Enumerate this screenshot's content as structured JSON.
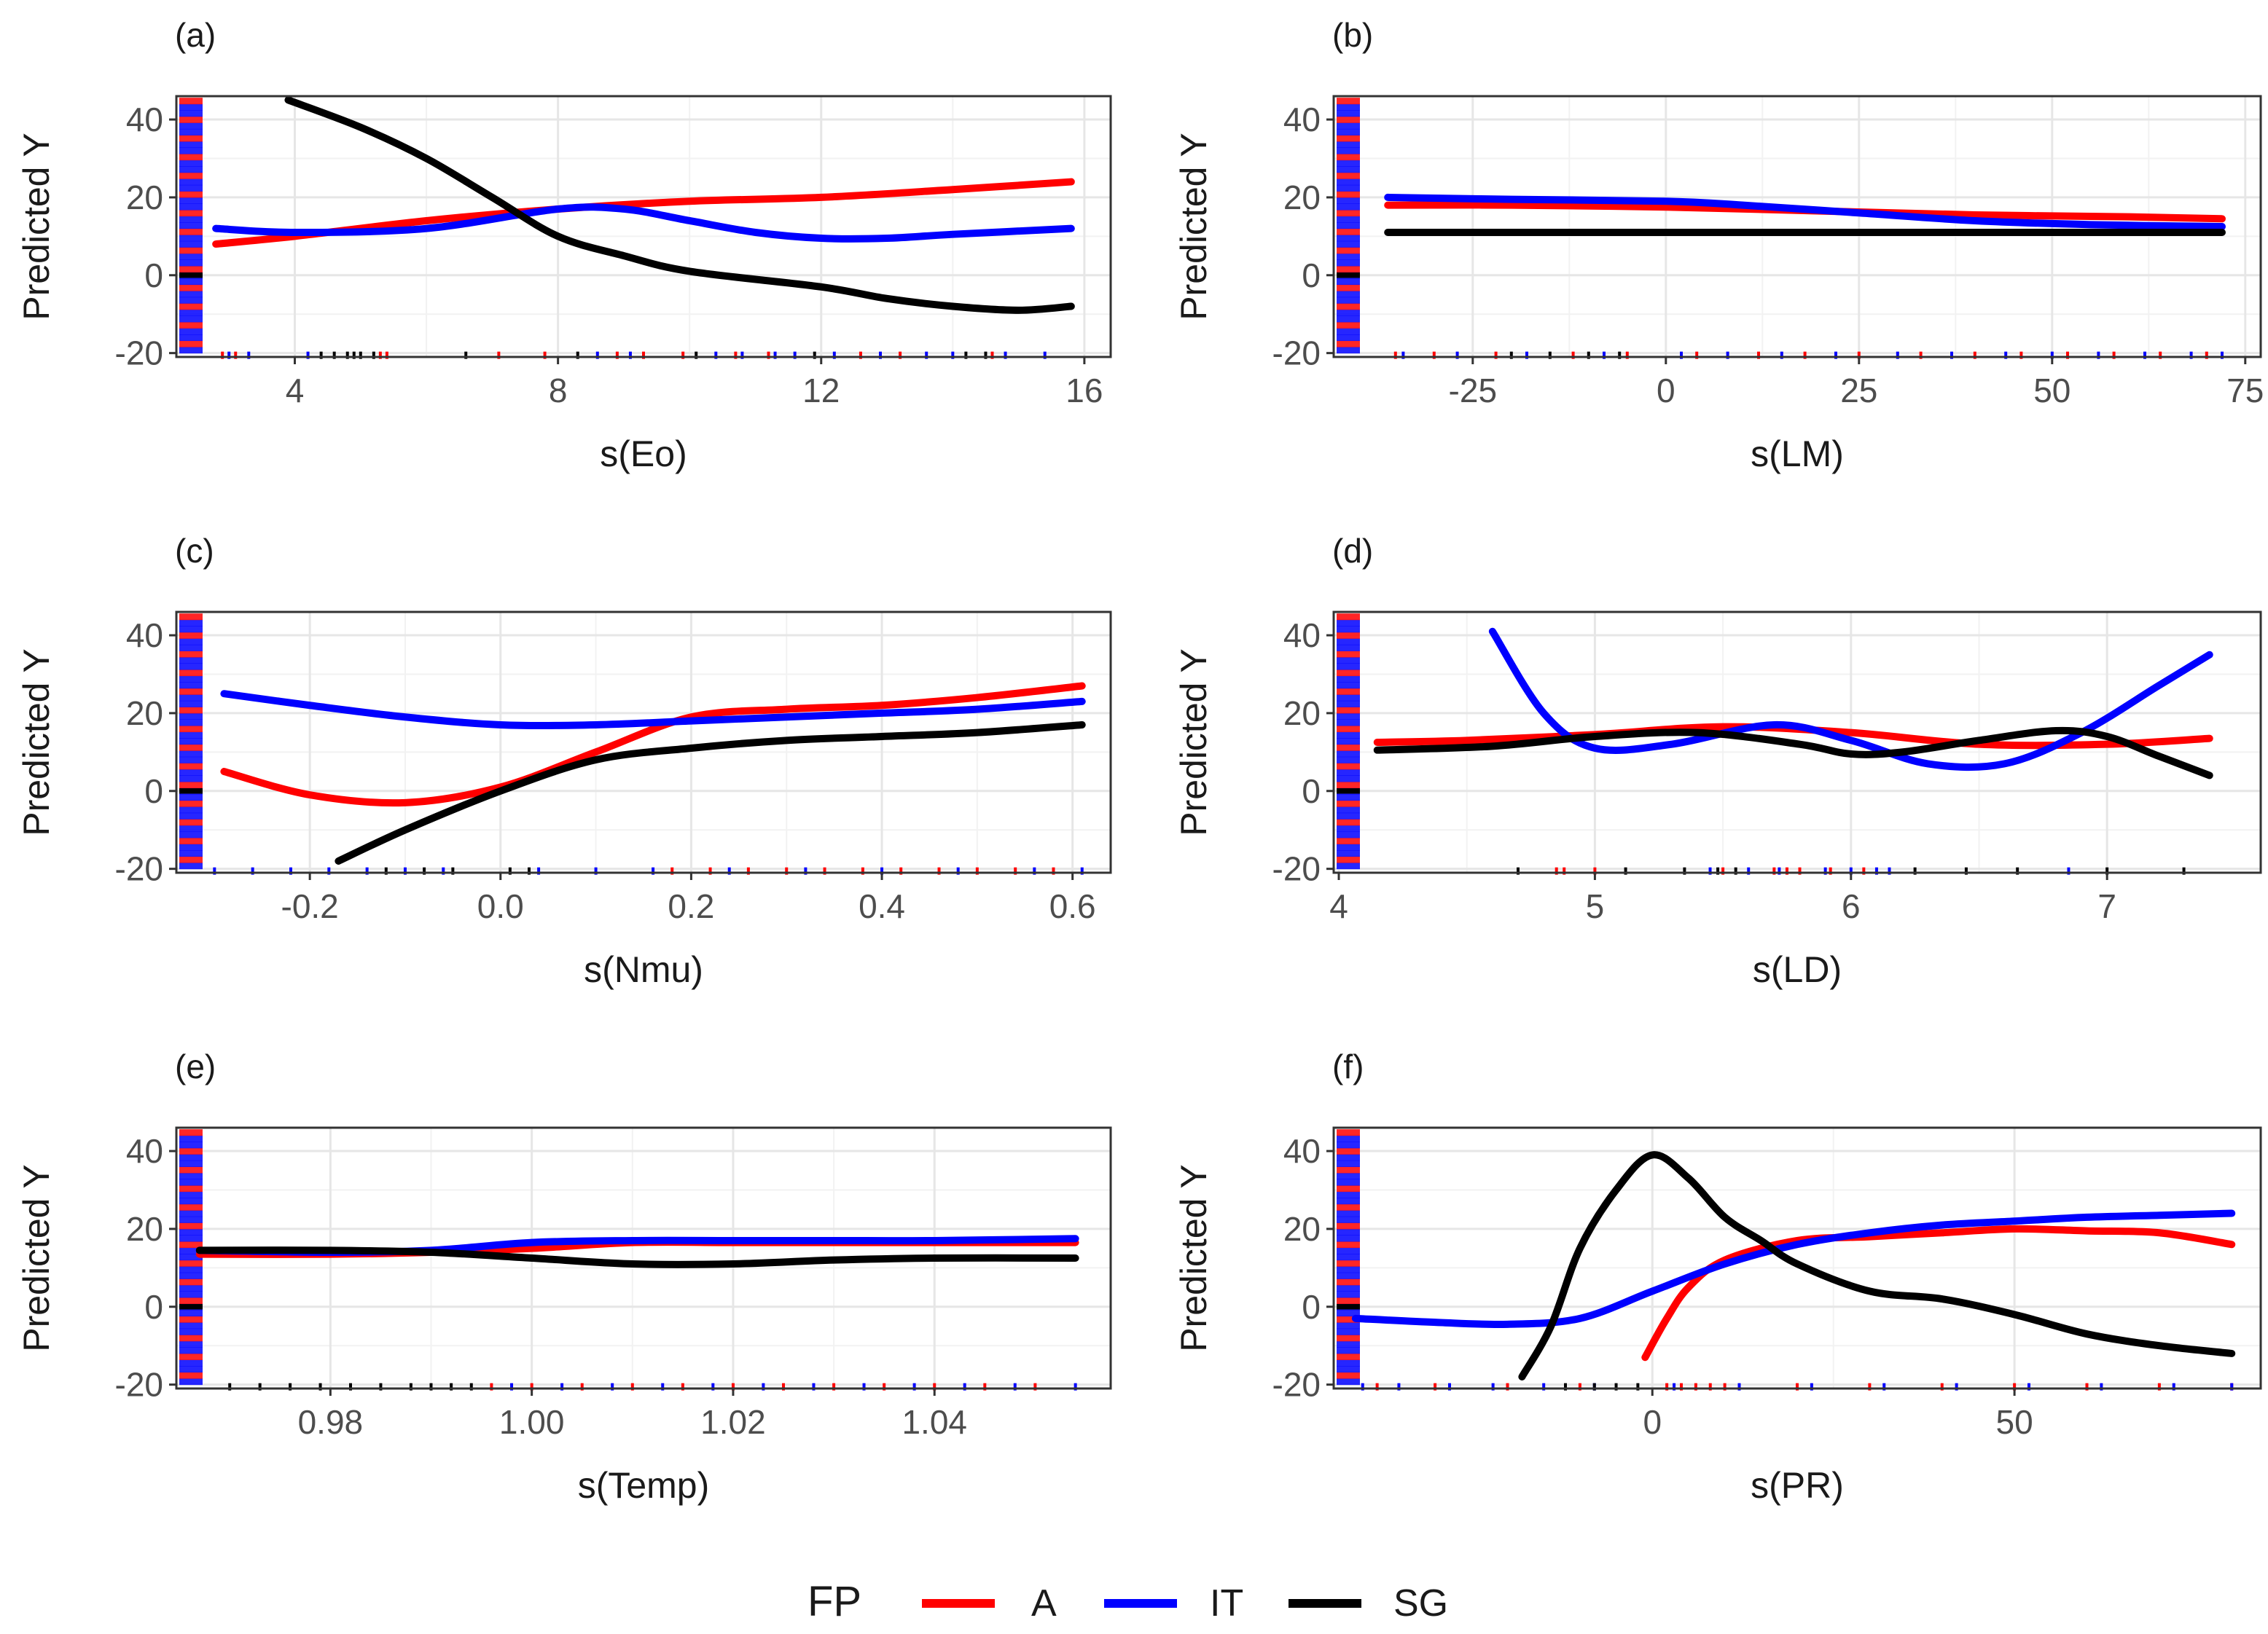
{
  "chart_data": [
    {
      "panel": "(a)",
      "type": "line",
      "xlabel": "s(Eo)",
      "ylabel": "Predicted Y",
      "xlim": [
        2.2,
        16.4
      ],
      "ylim": [
        -21,
        46
      ],
      "xticks": [
        4,
        8,
        12,
        16
      ],
      "xtick_labels": [
        "4",
        "8",
        "12",
        "16"
      ],
      "yticks": [
        -20,
        0,
        20,
        40
      ],
      "ytick_labels": [
        "-20",
        "0",
        "20",
        "40"
      ],
      "series": [
        {
          "name": "A",
          "x": [
            2.8,
            4,
            6,
            8,
            10,
            12,
            14,
            15.8
          ],
          "y": [
            8,
            10,
            14,
            17,
            19,
            20,
            22,
            24
          ]
        },
        {
          "name": "IT",
          "x": [
            2.8,
            4,
            6,
            8,
            9,
            10,
            11,
            12,
            13,
            14,
            15.8
          ],
          "y": [
            12,
            11,
            12,
            17,
            17,
            14,
            11,
            9.5,
            9.5,
            10.5,
            12
          ]
        },
        {
          "name": "SG",
          "x": [
            3.9,
            5,
            6,
            7,
            8,
            9,
            10,
            12,
            13,
            14,
            15,
            15.8
          ],
          "y": [
            45,
            38,
            30,
            20,
            10,
            5,
            1,
            -3,
            -6,
            -8,
            -9,
            -8
          ]
        }
      ],
      "rug_x": [
        {
          "series": "A",
          "x": [
            2.9,
            3.1,
            5.3,
            5.4,
            7.1,
            7.8,
            8.9,
            9.3,
            9.9,
            10.7,
            11.2,
            12.6,
            13.2,
            14.6
          ]
        },
        {
          "series": "IT",
          "x": [
            3.0,
            3.3,
            4.2,
            8.6,
            9.1,
            10.4,
            10.8,
            11.3,
            11.6,
            12.2,
            12.9,
            13.6,
            14.0,
            14.8,
            15.4
          ]
        },
        {
          "series": "SG",
          "x": [
            4.4,
            4.6,
            4.8,
            4.9,
            5.0,
            5.2,
            6.6,
            8.3,
            10.1,
            11.9,
            14.2,
            14.5
          ]
        }
      ]
    },
    {
      "panel": "(b)",
      "type": "line",
      "xlabel": "s(LM)",
      "ylabel": "Predicted Y",
      "xlim": [
        -43,
        77
      ],
      "ylim": [
        -21,
        46
      ],
      "xticks": [
        -25,
        0,
        25,
        50,
        75
      ],
      "xtick_labels": [
        "-25",
        "0",
        "25",
        "50",
        "75"
      ],
      "yticks": [
        -20,
        0,
        20,
        40
      ],
      "ytick_labels": [
        "-20",
        "0",
        "20",
        "40"
      ],
      "series": [
        {
          "name": "A",
          "x": [
            -36,
            -20,
            0,
            20,
            40,
            60,
            72
          ],
          "y": [
            18,
            18,
            17.5,
            16.5,
            15.5,
            15,
            14.5
          ]
        },
        {
          "name": "IT",
          "x": [
            -36,
            -20,
            0,
            10,
            25,
            40,
            55,
            72
          ],
          "y": [
            20,
            19.5,
            19,
            18,
            16,
            14,
            13,
            12.5
          ]
        },
        {
          "name": "SG",
          "x": [
            -36,
            72
          ],
          "y": [
            11,
            11
          ]
        }
      ],
      "rug_x": [
        {
          "series": "A",
          "x": [
            -35,
            -30,
            -22,
            -12,
            -5,
            4,
            12,
            18,
            25,
            33,
            40,
            46,
            52,
            58,
            64,
            70
          ]
        },
        {
          "series": "IT",
          "x": [
            -34,
            -27,
            -18,
            -8,
            2,
            8,
            15,
            22,
            30,
            37,
            44,
            50,
            56,
            62,
            68,
            72
          ]
        },
        {
          "series": "SG",
          "x": [
            -20,
            -15,
            -10,
            -6
          ]
        }
      ]
    },
    {
      "panel": "(c)",
      "type": "line",
      "xlabel": "s(Nmu)",
      "ylabel": "Predicted Y",
      "xlim": [
        -0.34,
        0.64
      ],
      "ylim": [
        -21,
        46
      ],
      "xticks": [
        -0.2,
        0.0,
        0.2,
        0.4,
        0.6
      ],
      "xtick_labels": [
        "-0.2",
        "0.0",
        "0.2",
        "0.4",
        "0.6"
      ],
      "yticks": [
        -20,
        0,
        20,
        40
      ],
      "ytick_labels": [
        "-20",
        "0",
        "20",
        "40"
      ],
      "series": [
        {
          "name": "A",
          "x": [
            -0.29,
            -0.2,
            -0.1,
            0.0,
            0.1,
            0.2,
            0.3,
            0.4,
            0.5,
            0.61
          ],
          "y": [
            5,
            -1,
            -3,
            1,
            10,
            19,
            21,
            22,
            24,
            27
          ]
        },
        {
          "name": "IT",
          "x": [
            -0.29,
            -0.2,
            -0.1,
            0.0,
            0.1,
            0.2,
            0.3,
            0.4,
            0.5,
            0.61
          ],
          "y": [
            25,
            22,
            19,
            17,
            17,
            18,
            19,
            20,
            21,
            23
          ]
        },
        {
          "name": "SG",
          "x": [
            -0.17,
            -0.1,
            0.0,
            0.1,
            0.2,
            0.3,
            0.4,
            0.5,
            0.61
          ],
          "y": [
            -18,
            -10,
            0,
            8,
            11,
            13,
            14,
            15,
            17
          ]
        }
      ],
      "rug_x": [
        {
          "series": "A",
          "x": [
            0.18,
            0.22,
            0.26,
            0.3,
            0.34,
            0.38,
            0.42,
            0.46,
            0.5,
            0.54,
            0.58
          ]
        },
        {
          "series": "IT",
          "x": [
            -0.3,
            -0.26,
            -0.22,
            -0.18,
            -0.14,
            -0.1,
            -0.06,
            0.04,
            0.1,
            0.16,
            0.24,
            0.32,
            0.4,
            0.48,
            0.56,
            0.61
          ]
        },
        {
          "series": "SG",
          "x": [
            -0.12,
            -0.08,
            -0.05,
            0.01,
            0.03
          ]
        }
      ]
    },
    {
      "panel": "(d)",
      "type": "line",
      "xlabel": "s(LD)",
      "ylabel": "Predicted Y",
      "xlim": [
        3.98,
        7.6
      ],
      "ylim": [
        -21,
        46
      ],
      "xticks": [
        4,
        5,
        6,
        7
      ],
      "xtick_labels": [
        "4",
        "5",
        "6",
        "7"
      ],
      "yticks": [
        -20,
        0,
        20,
        40
      ],
      "ytick_labels": [
        "-20",
        "0",
        "20",
        "40"
      ],
      "series": [
        {
          "name": "A",
          "x": [
            4.15,
            4.5,
            5.0,
            5.5,
            6.0,
            6.5,
            7.0,
            7.4
          ],
          "y": [
            12.5,
            13,
            14.5,
            16.5,
            15,
            12,
            12,
            13.5
          ]
        },
        {
          "name": "IT",
          "x": [
            4.6,
            4.8,
            5.0,
            5.3,
            5.7,
            6.0,
            6.3,
            6.6,
            6.9,
            7.2,
            7.4
          ],
          "y": [
            41,
            20,
            11,
            12,
            17,
            13,
            7,
            7,
            15,
            27,
            35
          ]
        },
        {
          "name": "SG",
          "x": [
            4.15,
            4.6,
            5.0,
            5.4,
            5.8,
            6.0,
            6.2,
            6.5,
            6.8,
            7.0,
            7.2,
            7.4
          ],
          "y": [
            10.5,
            11.5,
            14,
            15,
            12,
            9.5,
            10,
            13,
            15.5,
            14,
            9,
            4
          ]
        }
      ],
      "rug_x": [
        {
          "series": "A",
          "x": [
            4.85,
            4.88,
            5.0,
            5.5,
            5.7,
            5.75,
            5.8,
            5.92,
            6.05
          ]
        },
        {
          "series": "IT",
          "x": [
            5.45,
            5.6,
            5.72,
            5.9,
            6.0,
            6.1,
            6.15,
            6.85
          ]
        },
        {
          "series": "SG",
          "x": [
            4.7,
            5.12,
            5.35,
            5.48,
            5.55,
            6.25,
            6.45,
            6.65,
            7.0,
            7.3
          ]
        }
      ]
    },
    {
      "panel": "(e)",
      "type": "line",
      "xlabel": "s(Temp)",
      "ylabel": "Predicted Y",
      "xlim": [
        0.9647,
        1.0575
      ],
      "ylim": [
        -21,
        46
      ],
      "xticks": [
        0.98,
        1.0,
        1.02,
        1.04
      ],
      "xtick_labels": [
        "0.98",
        "1.00",
        "1.02",
        "1.04"
      ],
      "yticks": [
        -20,
        0,
        20,
        40
      ],
      "ytick_labels": [
        "-20",
        "0",
        "20",
        "40"
      ],
      "series": [
        {
          "name": "A",
          "x": [
            0.967,
            0.98,
            0.99,
            1.0,
            1.01,
            1.02,
            1.03,
            1.04,
            1.054
          ],
          "y": [
            13.5,
            13.5,
            14,
            15,
            16.5,
            16.5,
            16.5,
            16.5,
            16.5
          ]
        },
        {
          "name": "IT",
          "x": [
            0.967,
            0.98,
            0.99,
            1.0,
            1.01,
            1.02,
            1.03,
            1.04,
            1.054
          ],
          "y": [
            14.5,
            14,
            14.5,
            16.5,
            17,
            17,
            17,
            17,
            17.5
          ]
        },
        {
          "name": "SG",
          "x": [
            0.967,
            0.98,
            0.99,
            1.0,
            1.01,
            1.02,
            1.03,
            1.04,
            1.054
          ],
          "y": [
            14.5,
            14.5,
            14,
            12.5,
            11,
            11,
            12,
            12.5,
            12.5
          ]
        }
      ],
      "rug_x": [
        {
          "series": "A",
          "x": [
            0.996,
            1.0,
            1.005,
            1.01,
            1.015,
            1.02,
            1.025,
            1.03,
            1.035,
            1.04,
            1.045,
            1.05
          ]
        },
        {
          "series": "IT",
          "x": [
            0.998,
            1.003,
            1.008,
            1.013,
            1.018,
            1.023,
            1.028,
            1.033,
            1.038,
            1.043,
            1.048,
            1.054
          ]
        },
        {
          "series": "SG",
          "x": [
            0.97,
            0.973,
            0.976,
            0.979,
            0.982,
            0.985,
            0.988,
            0.99,
            0.992,
            0.994
          ]
        }
      ]
    },
    {
      "panel": "(f)",
      "type": "line",
      "xlabel": "s(PR)",
      "ylabel": "Predicted Y",
      "xlim": [
        -44,
        84
      ],
      "ylim": [
        -21,
        46
      ],
      "xticks": [
        0,
        50
      ],
      "xtick_labels": [
        "0",
        "50"
      ],
      "yticks": [
        -20,
        0,
        20,
        40
      ],
      "ytick_labels": [
        "-20",
        "0",
        "20",
        "40"
      ],
      "series": [
        {
          "name": "A",
          "x": [
            -1,
            2,
            5,
            10,
            20,
            30,
            40,
            50,
            60,
            70,
            80
          ],
          "y": [
            -13,
            -3,
            5,
            12,
            17,
            18,
            19,
            20,
            19.5,
            19,
            16
          ]
        },
        {
          "name": "IT",
          "x": [
            -41,
            -30,
            -20,
            -10,
            0,
            10,
            20,
            30,
            40,
            50,
            60,
            70,
            80
          ],
          "y": [
            -3,
            -4,
            -4.5,
            -3,
            4,
            11,
            16,
            19,
            21,
            22,
            23,
            23.5,
            24
          ]
        },
        {
          "name": "SG",
          "x": [
            -18,
            -14,
            -10,
            -5,
            0,
            5,
            10,
            15,
            20,
            30,
            40,
            50,
            60,
            70,
            80
          ],
          "y": [
            -18,
            -5,
            15,
            30,
            39,
            33,
            23,
            17,
            11,
            4,
            2,
            -2,
            -7,
            -10,
            -12
          ]
        }
      ],
      "rug_x": [
        {
          "series": "A",
          "x": [
            -38,
            -30,
            -20,
            -10,
            2,
            4,
            6,
            8,
            10,
            20,
            30,
            40,
            50,
            60,
            70,
            80
          ]
        },
        {
          "series": "IT",
          "x": [
            -40,
            -35,
            -28,
            -22,
            -15,
            -8,
            3,
            12,
            22,
            32,
            42,
            52,
            62,
            72,
            80
          ]
        },
        {
          "series": "SG",
          "x": [
            -12,
            -8,
            -5,
            -2
          ]
        }
      ]
    }
  ],
  "legend": {
    "title": "FP",
    "items": [
      {
        "label": "A",
        "color": "#ff0000"
      },
      {
        "label": "IT",
        "color": "#0000ff"
      },
      {
        "label": "SG",
        "color": "#000000"
      }
    ]
  },
  "colors": {
    "A": "#ff0000",
    "IT": "#0000ff",
    "SG": "#000000"
  }
}
